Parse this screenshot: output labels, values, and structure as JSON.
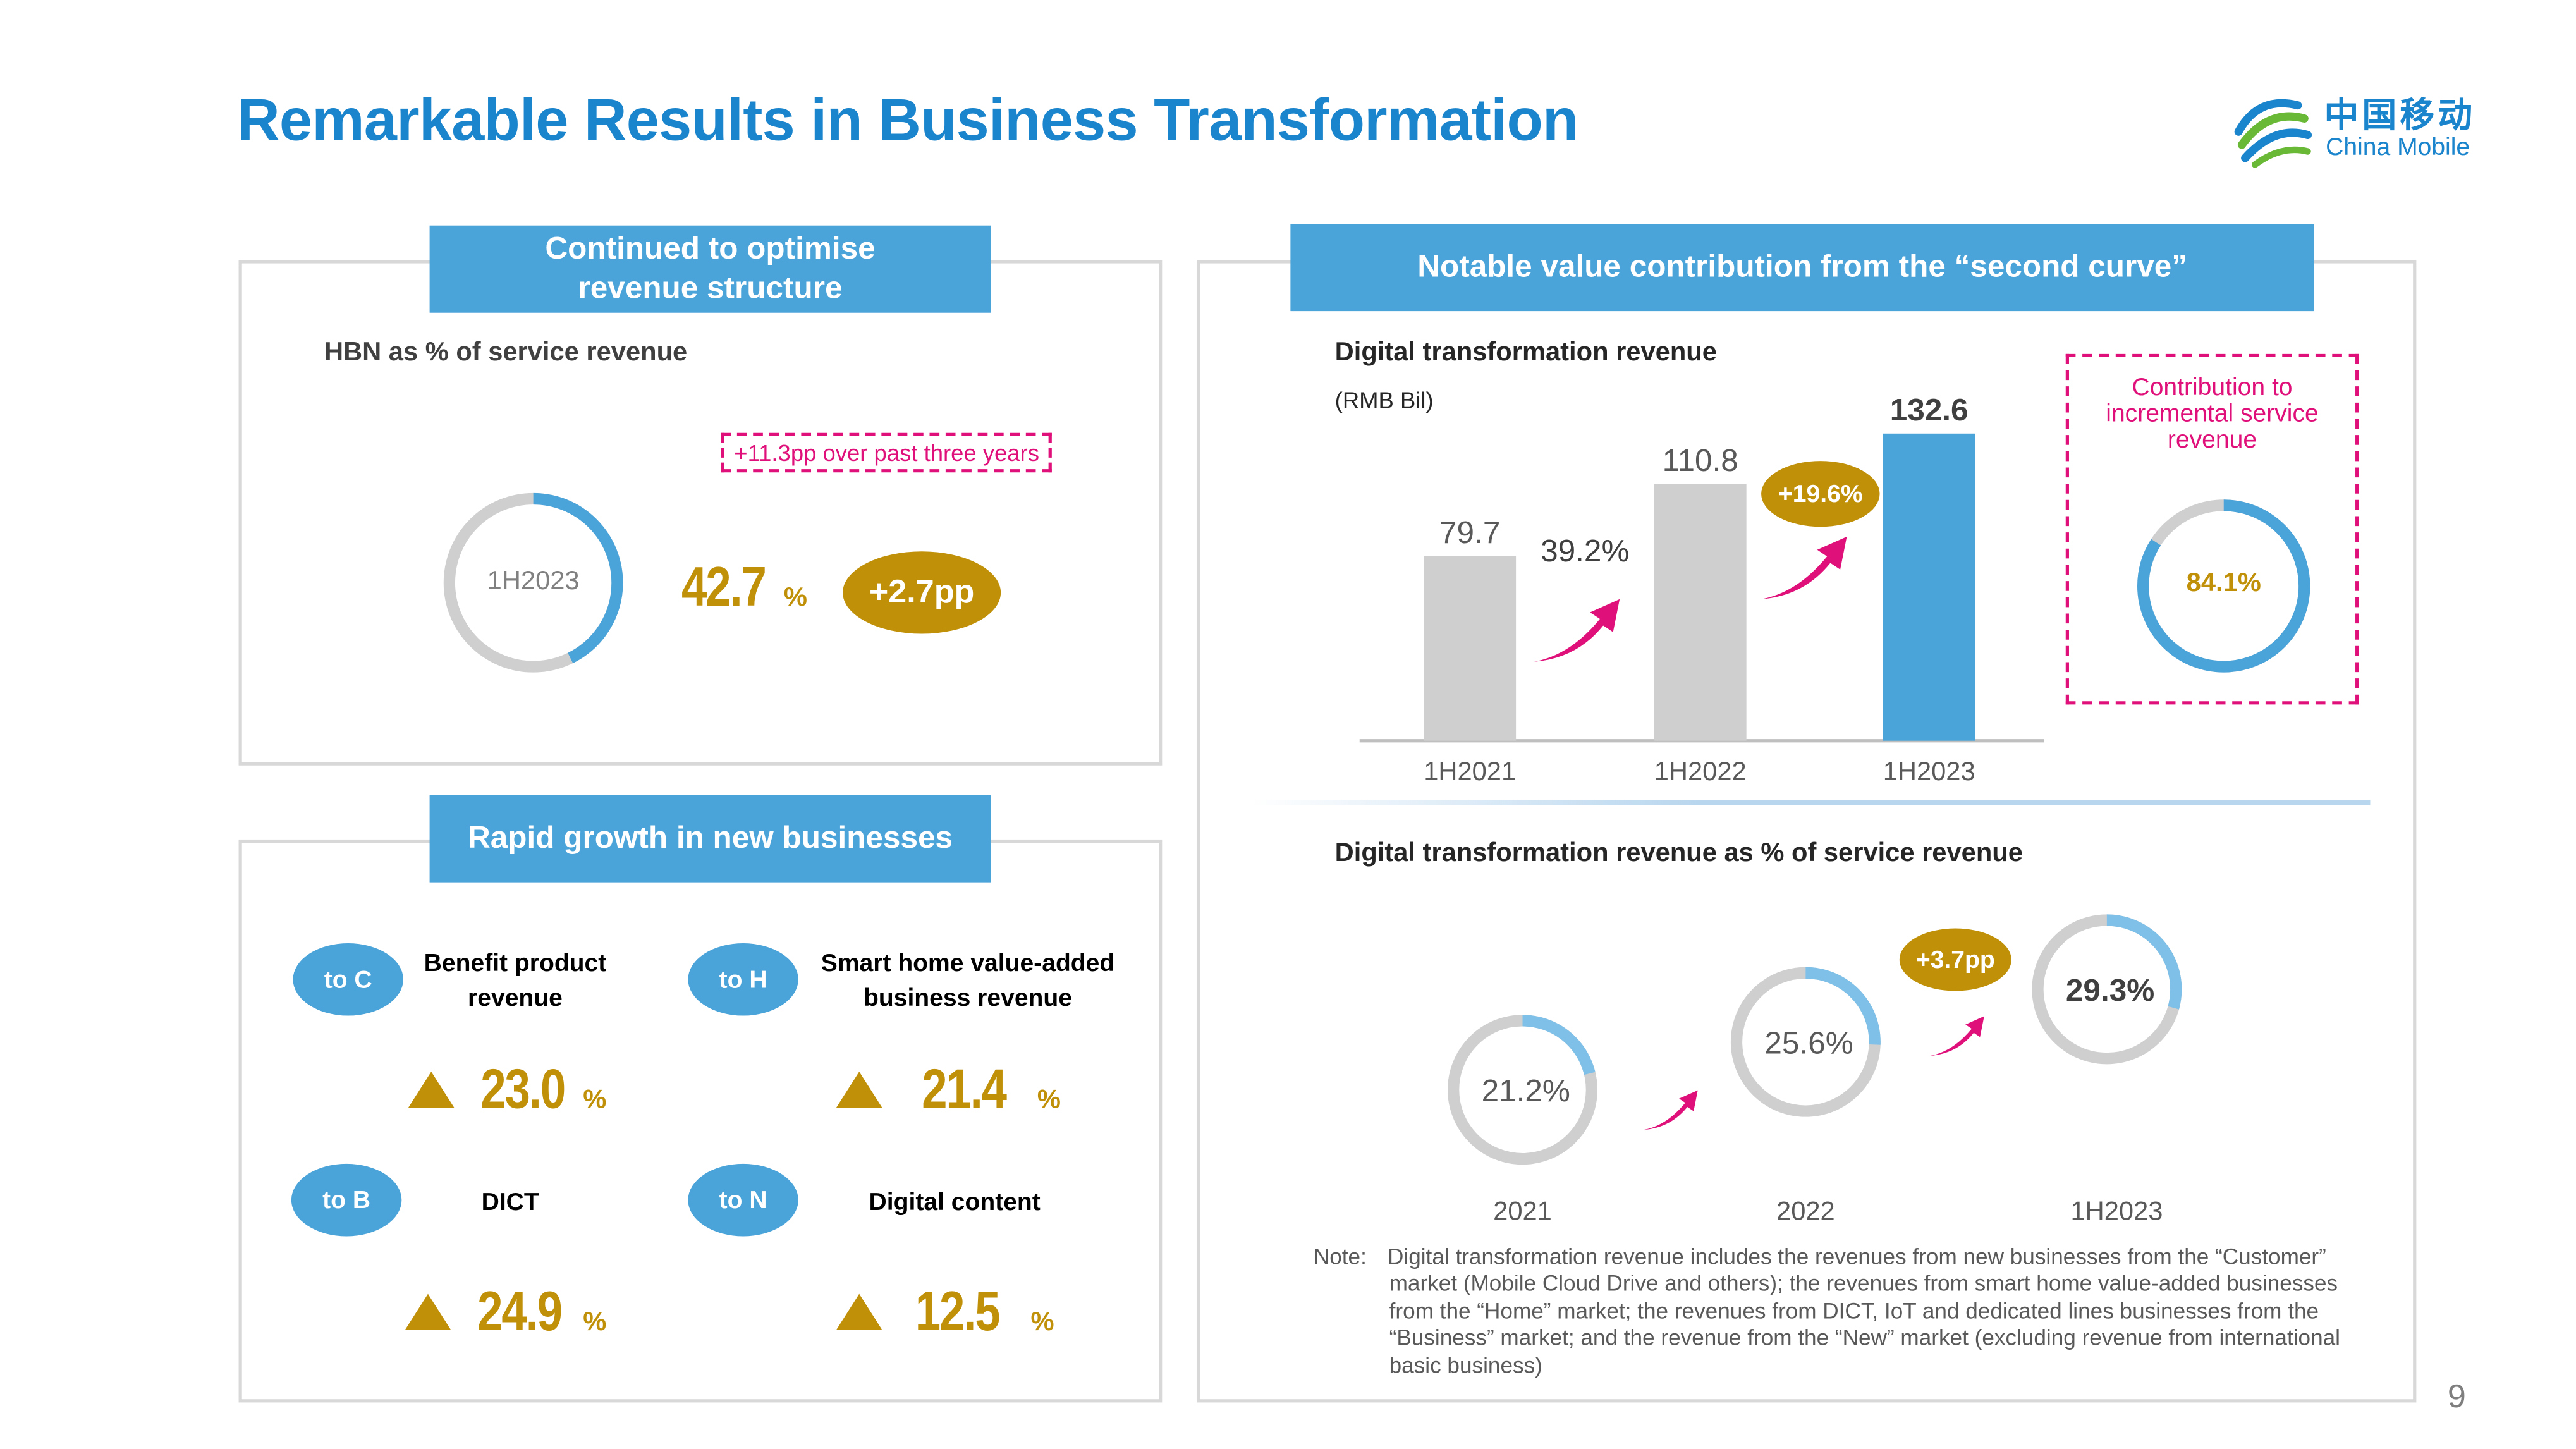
{
  "page": {
    "title": "Remarkable Results in Business Transformation",
    "page_number": "9",
    "logo": {
      "cn": "中国移动",
      "en": "China Mobile"
    }
  },
  "panel_tl": {
    "header": "Continued to optimise revenue structure",
    "subtitle": "HBN as % of service revenue",
    "callout": "+11.3pp over past three years",
    "donut_label": "1H2023",
    "value": "42.7",
    "unit": "%",
    "delta": "+2.7pp"
  },
  "panel_bl": {
    "header": "Rapid growth in new businesses",
    "items": [
      {
        "tag": "to C",
        "label": "Benefit product revenue",
        "value": "23.0",
        "unit": "%"
      },
      {
        "tag": "to H",
        "label": "Smart home value-added business revenue",
        "value": "21.4",
        "unit": "%"
      },
      {
        "tag": "to B",
        "label": "DICT",
        "value": "24.9",
        "unit": "%"
      },
      {
        "tag": "to N",
        "label": "Digital content",
        "value": "12.5",
        "unit": "%"
      }
    ]
  },
  "panel_r": {
    "header": "Notable value contribution from the “second curve”",
    "bar_title": "Digital transformation revenue",
    "bar_unit": "(RMB Bil)",
    "growth_1": "39.2%",
    "growth_2": "+19.6%",
    "contribution_title": "Contribution to incremental service revenue",
    "contribution_value": "84.1%",
    "donut_title": "Digital transformation revenue as % of service revenue",
    "donut_delta": "+3.7pp",
    "note_label": "Note:",
    "note_text": "Digital transformation revenue includes the revenues from new businesses from the “Customer” market (Mobile Cloud Drive and others); the revenues from smart home value-added businesses from the “Home” market; the revenues from DICT, IoT and dedicated lines businesses from the “Business” market; and the revenue from the “New” market (excluding revenue from international basic business)"
  },
  "colors": {
    "blue": "#4aa3d9",
    "title_blue": "#1a84cc",
    "gold": "#c09008",
    "magenta": "#e0107a",
    "gray": "#cfcfcf"
  },
  "chart_data": [
    {
      "type": "pie",
      "title": "HBN as % of service revenue",
      "categories": [
        "1H2023"
      ],
      "values": [
        42.7
      ],
      "unit": "%"
    },
    {
      "type": "bar",
      "title": "Digital transformation revenue",
      "ylabel": "(RMB Bil)",
      "categories": [
        "1H2021",
        "1H2022",
        "1H2023"
      ],
      "values": [
        79.7,
        110.8,
        132.6
      ],
      "ylim": [
        0,
        140
      ],
      "grid": false
    },
    {
      "type": "pie",
      "title": "Contribution to incremental service revenue",
      "values": [
        84.1
      ],
      "unit": "%"
    },
    {
      "type": "pie",
      "title": "Digital transformation revenue as % of service revenue",
      "categories": [
        "2021",
        "2022",
        "1H2023"
      ],
      "values": [
        21.2,
        25.6,
        29.3
      ],
      "unit": "%"
    }
  ]
}
